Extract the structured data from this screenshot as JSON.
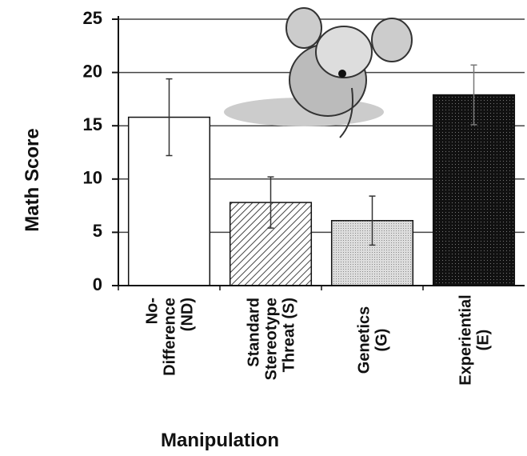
{
  "chart_data": {
    "type": "bar",
    "title": null,
    "x_label": "Manipulation",
    "y_label": "Math Score",
    "categories": [
      [
        "No-",
        "Difference",
        "(ND)"
      ],
      [
        "Standard",
        "Stereotype",
        "Threat (S)"
      ],
      [
        "Genetics",
        "(G)"
      ],
      [
        "Experiential",
        "(E)"
      ]
    ],
    "values": [
      15.8,
      7.8,
      6.1,
      17.9
    ],
    "errors": [
      3.6,
      2.4,
      2.3,
      2.8
    ],
    "ylim": [
      0,
      25
    ],
    "yticks": [
      0,
      5,
      10,
      15,
      20,
      25
    ],
    "grid": true
  }
}
